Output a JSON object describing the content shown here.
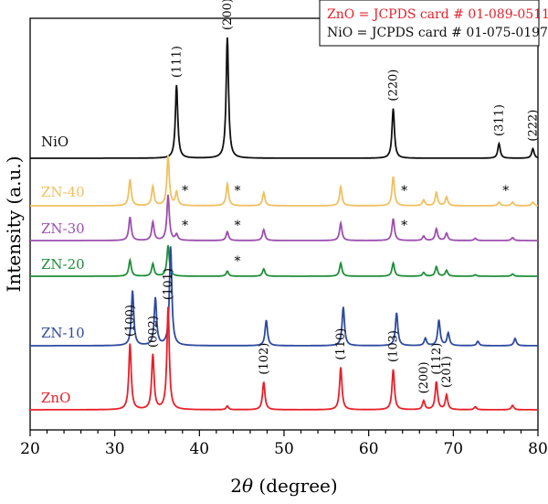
{
  "chart_data": {
    "type": "line",
    "title": "",
    "xlabel_prefix": "2",
    "xlabel_theta": "θ",
    "xlabel_suffix": " (degree)",
    "ylabel": "Intensity (a.u.)",
    "xlim": [
      20,
      80
    ],
    "xticks": [
      "20",
      "30",
      "40",
      "50",
      "60",
      "70",
      "80"
    ],
    "grid": false,
    "legend_box": {
      "position": "top-right",
      "lines": [
        {
          "text": "ZnO = JCPDS card # 01-089-0511",
          "color": "#e8202a"
        },
        {
          "text": "NiO = JCPDS card # 01-075-0197",
          "color": "#111111"
        }
      ]
    },
    "series": [
      {
        "name": "NiO",
        "color": "#111111",
        "peaks": [
          {
            "x": 37.3,
            "h": 1.0,
            "label": "(111)"
          },
          {
            "x": 43.3,
            "h": 1.65,
            "label": "(200)"
          },
          {
            "x": 62.9,
            "h": 0.68,
            "label": "(220)"
          },
          {
            "x": 75.4,
            "h": 0.2,
            "label": "(311)"
          },
          {
            "x": 79.4,
            "h": 0.13,
            "label": "(222)"
          }
        ]
      },
      {
        "name": "ZN-40",
        "color": "#f0c060",
        "peaks": [
          {
            "x": 31.8,
            "h": 0.36
          },
          {
            "x": 34.5,
            "h": 0.26
          },
          {
            "x": 36.3,
            "h": 0.68
          },
          {
            "x": 37.3,
            "h": 0.18
          },
          {
            "x": 43.3,
            "h": 0.3
          },
          {
            "x": 47.6,
            "h": 0.18
          },
          {
            "x": 56.7,
            "h": 0.26
          },
          {
            "x": 62.9,
            "h": 0.4
          },
          {
            "x": 66.5,
            "h": 0.08
          },
          {
            "x": 68.0,
            "h": 0.18
          },
          {
            "x": 69.2,
            "h": 0.12
          },
          {
            "x": 75.4,
            "h": 0.05
          },
          {
            "x": 77.0,
            "h": 0.05
          },
          {
            "x": 79.4,
            "h": 0.05
          }
        ],
        "stars": [
          38.3,
          44.5,
          64.2,
          76.2
        ]
      },
      {
        "name": "ZN-30",
        "color": "#9d4fb0",
        "peaks": [
          {
            "x": 31.8,
            "h": 0.32
          },
          {
            "x": 34.5,
            "h": 0.25
          },
          {
            "x": 36.3,
            "h": 0.62
          },
          {
            "x": 37.3,
            "h": 0.08
          },
          {
            "x": 43.3,
            "h": 0.12
          },
          {
            "x": 47.6,
            "h": 0.15
          },
          {
            "x": 56.7,
            "h": 0.24
          },
          {
            "x": 62.9,
            "h": 0.3
          },
          {
            "x": 66.5,
            "h": 0.06
          },
          {
            "x": 68.0,
            "h": 0.16
          },
          {
            "x": 69.2,
            "h": 0.1
          },
          {
            "x": 72.6,
            "h": 0.03
          },
          {
            "x": 77.0,
            "h": 0.04
          }
        ],
        "stars": [
          38.3,
          44.5,
          64.2
        ]
      },
      {
        "name": "ZN-20",
        "color": "#1f8f3a",
        "peaks": [
          {
            "x": 31.8,
            "h": 0.22
          },
          {
            "x": 34.5,
            "h": 0.17
          },
          {
            "x": 36.3,
            "h": 0.42
          },
          {
            "x": 43.3,
            "h": 0.07
          },
          {
            "x": 47.6,
            "h": 0.1
          },
          {
            "x": 56.7,
            "h": 0.18
          },
          {
            "x": 62.9,
            "h": 0.18
          },
          {
            "x": 66.5,
            "h": 0.05
          },
          {
            "x": 68.0,
            "h": 0.13
          },
          {
            "x": 69.2,
            "h": 0.08
          },
          {
            "x": 72.6,
            "h": 0.02
          },
          {
            "x": 77.0,
            "h": 0.03
          }
        ],
        "stars": [
          44.5
        ]
      },
      {
        "name": "ZN-10",
        "color": "#2e4aa0",
        "peaks": [
          {
            "x": 32.1,
            "h": 0.75
          },
          {
            "x": 34.8,
            "h": 0.65
          },
          {
            "x": 36.6,
            "h": 1.35
          },
          {
            "x": 47.9,
            "h": 0.35
          },
          {
            "x": 57.0,
            "h": 0.53
          },
          {
            "x": 63.3,
            "h": 0.45
          },
          {
            "x": 66.7,
            "h": 0.1
          },
          {
            "x": 68.3,
            "h": 0.35
          },
          {
            "x": 69.4,
            "h": 0.17
          },
          {
            "x": 72.9,
            "h": 0.06
          },
          {
            "x": 77.3,
            "h": 0.1
          }
        ],
        "stars": []
      },
      {
        "name": "ZnO",
        "color": "#e8202a",
        "peaks": [
          {
            "x": 31.8,
            "h": 0.9,
            "label": "(100)"
          },
          {
            "x": 34.5,
            "h": 0.75,
            "label": "(002)"
          },
          {
            "x": 36.3,
            "h": 1.4,
            "label": "(101)"
          },
          {
            "x": 43.3,
            "h": 0.05
          },
          {
            "x": 47.6,
            "h": 0.38,
            "label": "(102)"
          },
          {
            "x": 56.7,
            "h": 0.58,
            "label": "(110)"
          },
          {
            "x": 62.9,
            "h": 0.55,
            "label": "(103)"
          },
          {
            "x": 66.5,
            "h": 0.12,
            "label": "(200)"
          },
          {
            "x": 68.0,
            "h": 0.38,
            "label": "(112)"
          },
          {
            "x": 69.2,
            "h": 0.2,
            "label": "(201)"
          },
          {
            "x": 72.6,
            "h": 0.04
          },
          {
            "x": 77.0,
            "h": 0.06
          }
        ],
        "stars": []
      }
    ]
  }
}
